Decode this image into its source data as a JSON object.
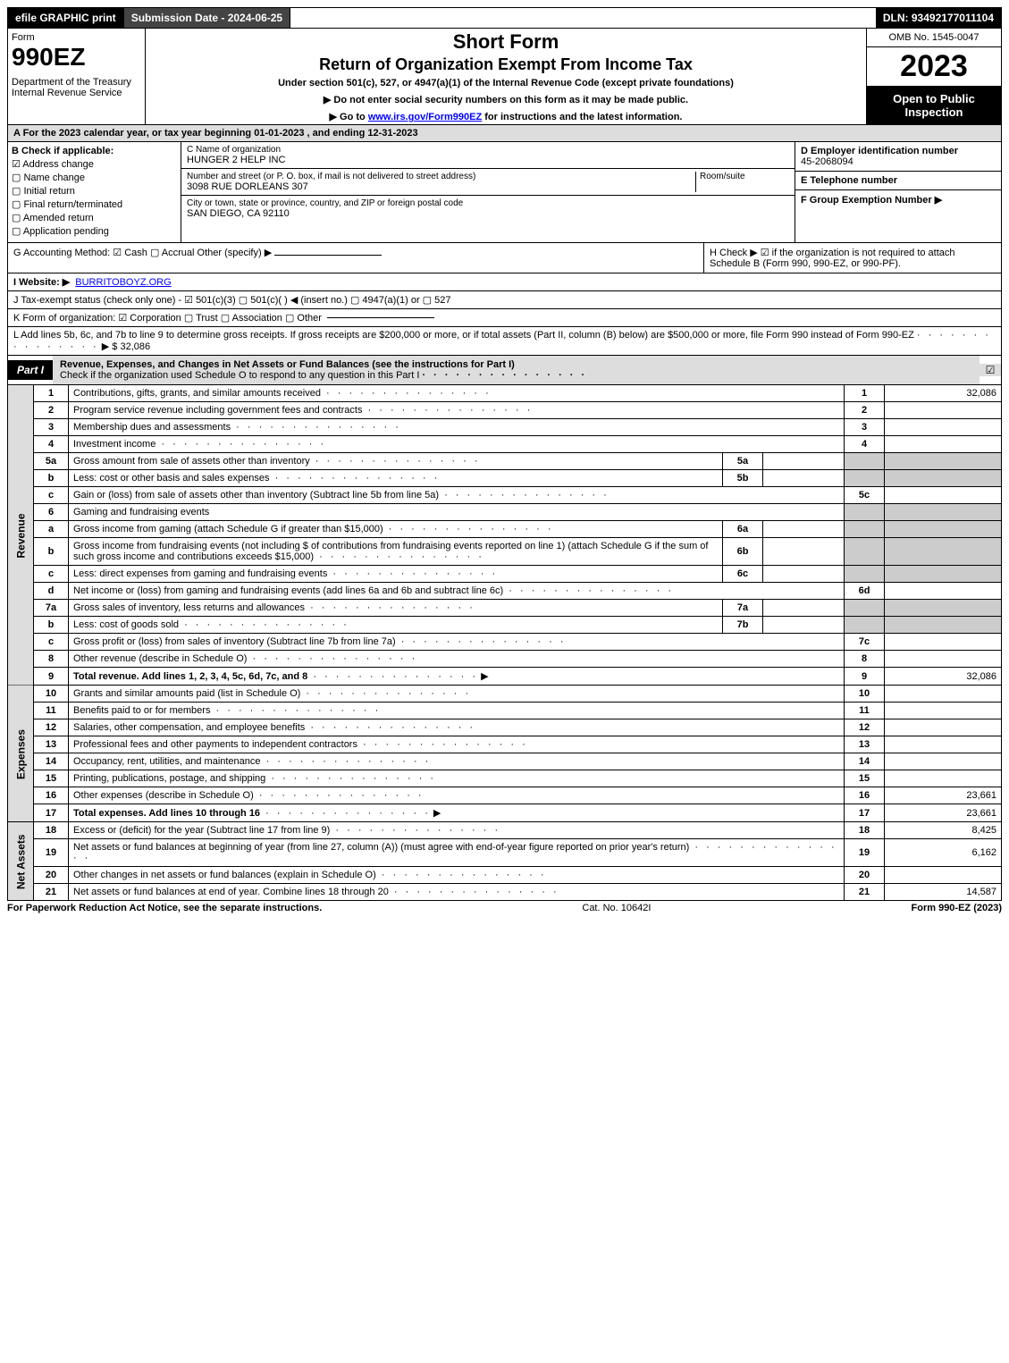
{
  "top_bar": {
    "efile": "efile GRAPHIC print",
    "submission_label": "Submission Date - 2024-06-25",
    "dln": "DLN: 93492177011104"
  },
  "header": {
    "form_label": "Form",
    "form_number": "990EZ",
    "department": "Department of the Treasury\nInternal Revenue Service",
    "title_short": "Short Form",
    "title_main": "Return of Organization Exempt From Income Tax",
    "subtitle": "Under section 501(c), 527, or 4947(a)(1) of the Internal Revenue Code (except private foundations)",
    "note1": "▶ Do not enter social security numbers on this form as it may be made public.",
    "note2_prefix": "▶ Go to ",
    "note2_link": "www.irs.gov/Form990EZ",
    "note2_suffix": " for instructions and the latest information.",
    "omb": "OMB No. 1545-0047",
    "tax_year": "2023",
    "open_public": "Open to Public Inspection"
  },
  "section_a": "A  For the 2023 calendar year, or tax year beginning 01-01-2023 , and ending 12-31-2023",
  "section_b": {
    "label": "B  Check if applicable:",
    "items": [
      "Address change",
      "Name change",
      "Initial return",
      "Final return/terminated",
      "Amended return",
      "Application pending"
    ],
    "checked_index": 0
  },
  "section_c": {
    "name_label": "C Name of organization",
    "name_value": "HUNGER 2 HELP INC",
    "street_label": "Number and street (or P. O. box, if mail is not delivered to street address)",
    "room_label": "Room/suite",
    "street_value": "3098 RUE DORLEANS 307",
    "city_label": "City or town, state or province, country, and ZIP or foreign postal code",
    "city_value": "SAN DIEGO, CA  92110"
  },
  "section_def": {
    "d_label": "D Employer identification number",
    "d_value": "45-2068094",
    "e_label": "E Telephone number",
    "e_value": "",
    "f_label": "F Group Exemption Number   ▶",
    "f_value": ""
  },
  "section_g": {
    "label": "G Accounting Method:",
    "options": "☑ Cash  ▢ Accrual  Other (specify) ▶"
  },
  "section_h": {
    "text": "H   Check ▶  ☑  if the organization is not required to attach Schedule B (Form 990, 990-EZ, or 990-PF)."
  },
  "section_i": {
    "label": "I Website: ▶",
    "value": "BURRITOBOYZ.ORG"
  },
  "section_j": {
    "text": "J Tax-exempt status (check only one) - ☑ 501(c)(3) ▢ 501(c)(  ) ◀ (insert no.) ▢ 4947(a)(1) or ▢ 527"
  },
  "section_k": {
    "text": "K Form of organization:  ☑ Corporation  ▢ Trust  ▢ Association  ▢ Other"
  },
  "section_l": {
    "text": "L Add lines 5b, 6c, and 7b to line 9 to determine gross receipts. If gross receipts are $200,000 or more, or if total assets (Part II, column (B) below) are $500,000 or more, file Form 990 instead of Form 990-EZ",
    "amount_prefix": "▶ $ ",
    "amount": "32,086"
  },
  "part1": {
    "label": "Part I",
    "title": "Revenue, Expenses, and Changes in Net Assets or Fund Balances (see the instructions for Part I)",
    "subtitle": "Check if the organization used Schedule O to respond to any question in this Part I",
    "checked": "☑"
  },
  "sections": {
    "revenue": {
      "side_label": "Revenue",
      "rows": [
        {
          "n": "1",
          "desc": "Contributions, gifts, grants, and similar amounts received",
          "line": "1",
          "amt": "32,086"
        },
        {
          "n": "2",
          "desc": "Program service revenue including government fees and contracts",
          "line": "2",
          "amt": ""
        },
        {
          "n": "3",
          "desc": "Membership dues and assessments",
          "line": "3",
          "amt": ""
        },
        {
          "n": "4",
          "desc": "Investment income",
          "line": "4",
          "amt": ""
        },
        {
          "n": "5a",
          "desc": "Gross amount from sale of assets other than inventory",
          "sub": "5a",
          "subamt": ""
        },
        {
          "n": "b",
          "desc": "Less: cost or other basis and sales expenses",
          "sub": "5b",
          "subamt": ""
        },
        {
          "n": "c",
          "desc": "Gain or (loss) from sale of assets other than inventory (Subtract line 5b from line 5a)",
          "line": "5c",
          "amt": ""
        },
        {
          "n": "6",
          "desc": "Gaming and fundraising events",
          "shade": true
        },
        {
          "n": "a",
          "desc": "Gross income from gaming (attach Schedule G if greater than $15,000)",
          "sub": "6a",
          "subamt": ""
        },
        {
          "n": "b",
          "desc": "Gross income from fundraising events (not including $                    of contributions from fundraising events reported on line 1) (attach Schedule G if the sum of such gross income and contributions exceeds $15,000)",
          "sub": "6b",
          "subamt": ""
        },
        {
          "n": "c",
          "desc": "Less: direct expenses from gaming and fundraising events",
          "sub": "6c",
          "subamt": ""
        },
        {
          "n": "d",
          "desc": "Net income or (loss) from gaming and fundraising events (add lines 6a and 6b and subtract line 6c)",
          "line": "6d",
          "amt": ""
        },
        {
          "n": "7a",
          "desc": "Gross sales of inventory, less returns and allowances",
          "sub": "7a",
          "subamt": ""
        },
        {
          "n": "b",
          "desc": "Less: cost of goods sold",
          "sub": "7b",
          "subamt": ""
        },
        {
          "n": "c",
          "desc": "Gross profit or (loss) from sales of inventory (Subtract line 7b from line 7a)",
          "line": "7c",
          "amt": ""
        },
        {
          "n": "8",
          "desc": "Other revenue (describe in Schedule O)",
          "line": "8",
          "amt": ""
        },
        {
          "n": "9",
          "desc": "Total revenue. Add lines 1, 2, 3, 4, 5c, 6d, 7c, and 8",
          "bold": true,
          "arrow": true,
          "line": "9",
          "amt": "32,086"
        }
      ]
    },
    "expenses": {
      "side_label": "Expenses",
      "rows": [
        {
          "n": "10",
          "desc": "Grants and similar amounts paid (list in Schedule O)",
          "line": "10",
          "amt": ""
        },
        {
          "n": "11",
          "desc": "Benefits paid to or for members",
          "line": "11",
          "amt": ""
        },
        {
          "n": "12",
          "desc": "Salaries, other compensation, and employee benefits",
          "line": "12",
          "amt": ""
        },
        {
          "n": "13",
          "desc": "Professional fees and other payments to independent contractors",
          "line": "13",
          "amt": ""
        },
        {
          "n": "14",
          "desc": "Occupancy, rent, utilities, and maintenance",
          "line": "14",
          "amt": ""
        },
        {
          "n": "15",
          "desc": "Printing, publications, postage, and shipping",
          "line": "15",
          "amt": ""
        },
        {
          "n": "16",
          "desc": "Other expenses (describe in Schedule O)",
          "line": "16",
          "amt": "23,661"
        },
        {
          "n": "17",
          "desc": "Total expenses. Add lines 10 through 16",
          "bold": true,
          "arrow": true,
          "line": "17",
          "amt": "23,661"
        }
      ]
    },
    "netassets": {
      "side_label": "Net Assets",
      "rows": [
        {
          "n": "18",
          "desc": "Excess or (deficit) for the year (Subtract line 17 from line 9)",
          "line": "18",
          "amt": "8,425"
        },
        {
          "n": "19",
          "desc": "Net assets or fund balances at beginning of year (from line 27, column (A)) (must agree with end-of-year figure reported on prior year's return)",
          "line": "19",
          "amt": "6,162"
        },
        {
          "n": "20",
          "desc": "Other changes in net assets or fund balances (explain in Schedule O)",
          "line": "20",
          "amt": ""
        },
        {
          "n": "21",
          "desc": "Net assets or fund balances at end of year. Combine lines 18 through 20",
          "line": "21",
          "amt": "14,587"
        }
      ]
    }
  },
  "footer": {
    "left": "For Paperwork Reduction Act Notice, see the separate instructions.",
    "center": "Cat. No. 10642I",
    "right": "Form 990-EZ (2023)"
  }
}
